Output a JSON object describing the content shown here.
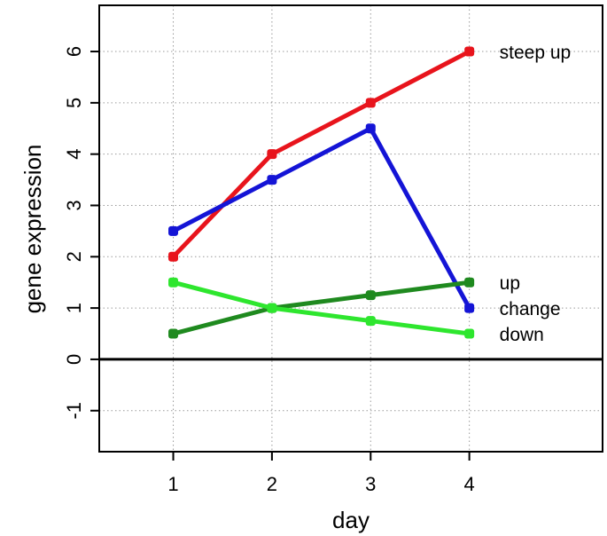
{
  "chart_data": {
    "type": "line",
    "title": "",
    "xlabel": "day",
    "ylabel": "gene expression",
    "x": [
      1,
      2,
      3,
      4
    ],
    "x_ticks": [
      "1",
      "2",
      "3",
      "4"
    ],
    "y_ticks": [
      "-1",
      "0",
      "1",
      "2",
      "3",
      "4",
      "5",
      "6"
    ],
    "xlim": [
      0.25,
      5.35
    ],
    "ylim": [
      -1.8,
      6.9
    ],
    "grid": true,
    "zero_line": true,
    "legend": "none",
    "series": [
      {
        "name": "steep up",
        "values": [
          2.0,
          4.0,
          5.0,
          6.0
        ],
        "color": "#e8141c"
      },
      {
        "name": "change",
        "values": [
          2.5,
          3.5,
          4.5,
          1.0
        ],
        "color": "#1414d6"
      },
      {
        "name": "up",
        "values": [
          0.5,
          1.0,
          1.25,
          1.5
        ],
        "color": "#1f8a1f"
      },
      {
        "name": "down",
        "values": [
          1.5,
          1.0,
          0.75,
          0.5
        ],
        "color": "#2ee62e"
      }
    ]
  }
}
